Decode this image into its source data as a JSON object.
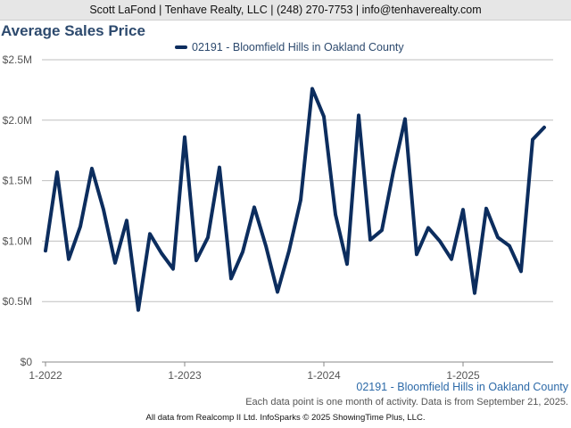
{
  "header": {
    "text": "Scott LaFond | Tenhave Realty, LLC | (248) 270-7753 | info@tenhaverealty.com"
  },
  "colors": {
    "series": "#0c2d5e",
    "title": "#2d4a6e",
    "grid": "#bfbfbf",
    "series_label": "#2d6aa8"
  },
  "chart_data": {
    "type": "line",
    "title": "Average Sales Price",
    "legend_position": "top",
    "grid": true,
    "xlabel": "",
    "ylabel": "",
    "ylim": [
      0,
      2500000
    ],
    "y_ticks": [
      {
        "value": 0,
        "label": "$0"
      },
      {
        "value": 500000,
        "label": "$0.5M"
      },
      {
        "value": 1000000,
        "label": "$1.0M"
      },
      {
        "value": 1500000,
        "label": "$1.5M"
      },
      {
        "value": 2000000,
        "label": "$2.0M"
      },
      {
        "value": 2500000,
        "label": "$2.5M"
      }
    ],
    "x_ticks": [
      {
        "index": 0,
        "label": "1-2022"
      },
      {
        "index": 12,
        "label": "1-2023"
      },
      {
        "index": 24,
        "label": "1-2024"
      },
      {
        "index": 36,
        "label": "1-2025"
      }
    ],
    "x": [
      "1-2022",
      "2-2022",
      "3-2022",
      "4-2022",
      "5-2022",
      "6-2022",
      "7-2022",
      "8-2022",
      "9-2022",
      "10-2022",
      "11-2022",
      "12-2022",
      "1-2023",
      "2-2023",
      "3-2023",
      "4-2023",
      "5-2023",
      "6-2023",
      "7-2023",
      "8-2023",
      "9-2023",
      "10-2023",
      "11-2023",
      "12-2023",
      "1-2024",
      "2-2024",
      "3-2024",
      "4-2024",
      "5-2024",
      "6-2024",
      "7-2024",
      "8-2024",
      "9-2024",
      "10-2024",
      "11-2024",
      "12-2024",
      "1-2025",
      "2-2025",
      "3-2025",
      "4-2025",
      "5-2025",
      "6-2025",
      "7-2025",
      "8-2025"
    ],
    "series": [
      {
        "name": "02191 - Bloomfield Hills in Oakland County",
        "values": [
          920000,
          1570000,
          850000,
          1120000,
          1600000,
          1260000,
          820000,
          1170000,
          430000,
          1060000,
          900000,
          770000,
          1860000,
          840000,
          1030000,
          1610000,
          690000,
          910000,
          1280000,
          960000,
          580000,
          920000,
          1340000,
          2260000,
          2030000,
          1220000,
          810000,
          2040000,
          1010000,
          1090000,
          1580000,
          2010000,
          890000,
          1110000,
          1000000,
          850000,
          1260000,
          570000,
          1270000,
          1030000,
          960000,
          750000,
          1840000,
          1940000
        ]
      }
    ]
  },
  "series_label": "02191 - Bloomfield Hills in Oakland County",
  "note": "Each data point is one month of activity. Data is from September 21, 2025.",
  "footer": "All data from Realcomp II Ltd. InfoSparks © 2025 ShowingTime Plus, LLC."
}
